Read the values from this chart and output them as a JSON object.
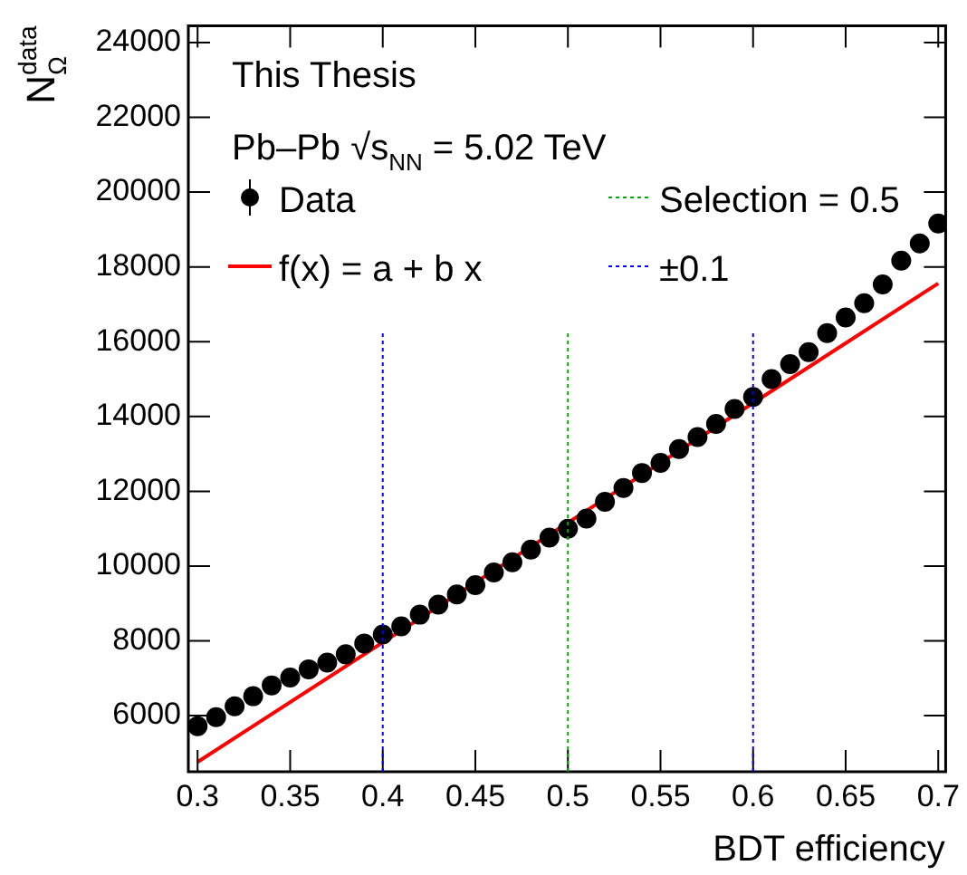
{
  "chart_data": {
    "type": "scatter",
    "xlabel": "BDT efficiency",
    "ylabel": "N$_{Ω}$$^{data}$",
    "annotations": [
      "This Thesis",
      "Pb–Pb √s$_{NN}$ = 5.02 TeV",
      "±0.1"
    ],
    "xlim": [
      0.295,
      0.704
    ],
    "ylim": [
      4500,
      24450
    ],
    "xticks": [
      0.3,
      0.35,
      0.4,
      0.45,
      0.5,
      0.55,
      0.6,
      0.65,
      0.7
    ],
    "yticks": [
      6000,
      8000,
      10000,
      12000,
      14000,
      16000,
      18000,
      20000,
      22000,
      24000
    ],
    "grid": false,
    "legend": "top left",
    "series": [
      {
        "name": "Data",
        "marker": "circle",
        "color": "#000000",
        "x": [
          0.3,
          0.31,
          0.32,
          0.33,
          0.34,
          0.35,
          0.36,
          0.37,
          0.38,
          0.39,
          0.4,
          0.41,
          0.42,
          0.43,
          0.44,
          0.45,
          0.46,
          0.47,
          0.48,
          0.49,
          0.5,
          0.51,
          0.52,
          0.53,
          0.54,
          0.55,
          0.56,
          0.57,
          0.58,
          0.59,
          0.6,
          0.61,
          0.62,
          0.63,
          0.64,
          0.65,
          0.66,
          0.67,
          0.68,
          0.69,
          0.7
        ],
        "values": [
          5720,
          5960,
          6250,
          6520,
          6810,
          7020,
          7240,
          7420,
          7640,
          7930,
          8170,
          8390,
          8700,
          8970,
          9240,
          9490,
          9830,
          10100,
          10440,
          10760,
          11000,
          11270,
          11720,
          12090,
          12490,
          12760,
          13130,
          13450,
          13800,
          14200,
          14520,
          15000,
          15400,
          15720,
          16230,
          16650,
          17030,
          17530,
          18170,
          18630,
          19160
        ]
      },
      {
        "name": "f(x) = a + b x",
        "type": "line",
        "marker": "none",
        "color": "#ff0000",
        "line_style": "solid",
        "x": [
          0.3,
          0.7
        ],
        "values": [
          4760,
          17560
        ]
      }
    ],
    "ref_lines": [
      {
        "axis": "x",
        "value": 0.5,
        "label": "Selection = 0.5",
        "color": "#00aa00",
        "line_style": "dotted"
      },
      {
        "axis": "x",
        "value": 0.4,
        "label": null,
        "color": "#0000ff",
        "line_style": "dotted"
      },
      {
        "axis": "x",
        "value": 0.6,
        "label": null,
        "color": "#0000ff",
        "line_style": "dotted"
      }
    ]
  }
}
